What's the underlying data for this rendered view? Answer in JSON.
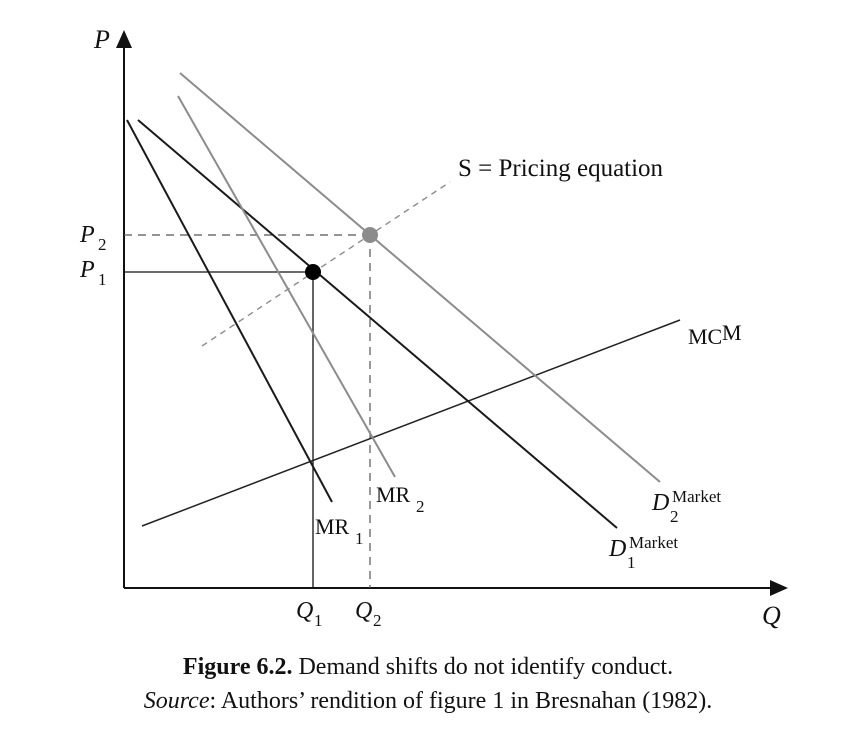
{
  "axes": {
    "y_label": "P",
    "x_label": "Q"
  },
  "price_labels": [
    {
      "main": "P",
      "sub": "2"
    },
    {
      "main": "P",
      "sub": "1"
    }
  ],
  "quantity_labels": [
    {
      "main": "Q",
      "sub": "1"
    },
    {
      "main": "Q",
      "sub": "2"
    }
  ],
  "curves": {
    "pricing_equation": {
      "label": "S = Pricing equation",
      "color": "#8c8c8c"
    },
    "mc": {
      "main": "MC",
      "sup": "M",
      "color": "#222222"
    },
    "demand_1": {
      "main": "D",
      "sup": "Market",
      "sub": "1",
      "color": "#1a1a1a"
    },
    "demand_2": {
      "main": "D",
      "sup": "Market",
      "sub": "2",
      "color": "#8c8c8c"
    },
    "mr_1": {
      "main": "MR",
      "sub": "1",
      "color": "#1a1a1a"
    },
    "mr_2": {
      "main": "MR",
      "sub": "2",
      "color": "#8c8c8c"
    }
  },
  "equilibria": {
    "point_1": {
      "color": "#000000"
    },
    "point_2": {
      "color": "#8c8c8c"
    }
  },
  "caption": {
    "figure_number": "Figure 6.2.",
    "title": "Demand shifts do not identify conduct.",
    "source_label": "Source",
    "source_text": ": Authors’ rendition of figure 1 in Bresnahan (1982)."
  }
}
